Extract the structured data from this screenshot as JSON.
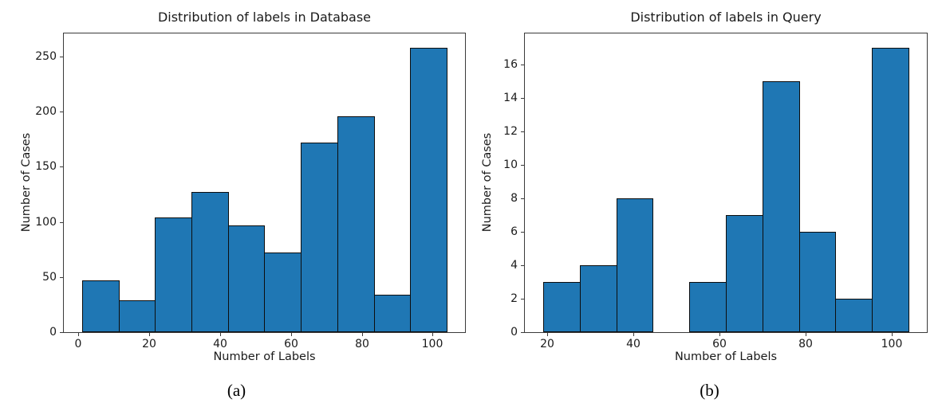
{
  "figure": {
    "background": "#ffffff"
  },
  "colors": {
    "bar_fill": "#1f77b4",
    "bar_edge": "#0d0d0d",
    "spine": "#3a3a3a",
    "text": "#1a1a1a"
  },
  "chart_data": [
    {
      "type": "bar",
      "subtype": "histogram",
      "title": "Distribution of labels in Database",
      "xlabel": "Number of Labels",
      "ylabel": "Number of Cases",
      "caption": "(a)",
      "bin_edges": [
        1,
        11.3,
        21.6,
        31.9,
        42.2,
        52.5,
        62.8,
        73.1,
        83.4,
        93.7,
        104
      ],
      "values": [
        47,
        29,
        104,
        127,
        97,
        72,
        172,
        196,
        34,
        258
      ],
      "xticks": [
        0,
        20,
        40,
        60,
        80,
        100
      ],
      "yticks": [
        0,
        50,
        100,
        150,
        200,
        250
      ],
      "xlim": [
        -4.15,
        109.15
      ],
      "ylim": [
        0,
        271
      ],
      "grid": false,
      "legend": false
    },
    {
      "type": "bar",
      "subtype": "histogram",
      "title": "Distribution of labels in Query",
      "xlabel": "Number of Labels",
      "ylabel": "Number of Cases",
      "caption": "(b)",
      "bin_edges": [
        19,
        27.5,
        36,
        44.5,
        53,
        61.5,
        70,
        78.5,
        87,
        95.5,
        104
      ],
      "values": [
        3,
        4,
        8,
        0,
        3,
        7,
        15,
        6,
        2,
        17
      ],
      "xticks": [
        20,
        40,
        60,
        80,
        100
      ],
      "yticks": [
        0,
        2,
        4,
        6,
        8,
        10,
        12,
        14,
        16
      ],
      "xlim": [
        14.75,
        108.25
      ],
      "ylim": [
        0,
        17.85
      ],
      "grid": false,
      "legend": false
    }
  ]
}
